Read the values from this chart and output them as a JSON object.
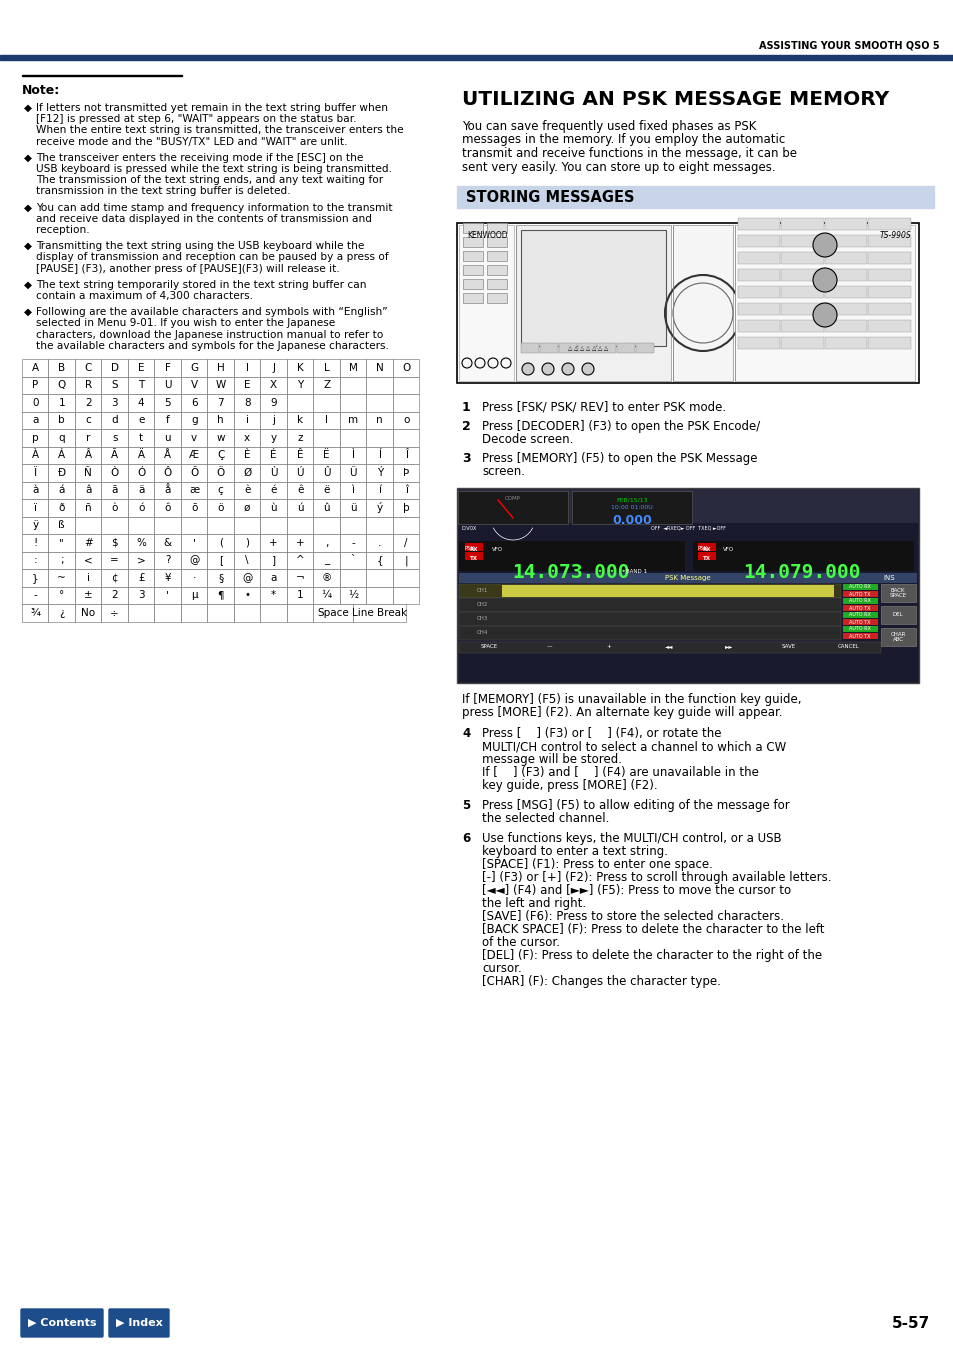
{
  "page_header": "ASSISTING YOUR SMOOTH QSO 5",
  "header_line_color": "#1a3a6b",
  "background_color": "#ffffff",
  "note_title": "Note:",
  "bullet_texts": [
    "If letters not transmitted yet remain in the text string buffer when\n[F12] is pressed at step 6, \"WAIT\" appears on the status bar.\nWhen the entire text string is transmitted, the transceiver enters the\nreceive mode and the \"BUSY/TX\" LED and \"WAIT\" are unlit.",
    "The transceiver enters the receiving mode if the [ESC] on the\nUSB keyboard is pressed while the text string is being transmitted.\nThe transmission of the text string ends, and any text waiting for\ntransmission in the text string buffer is deleted.",
    "You can add time stamp and frequency information to the transmit\nand receive data displayed in the contents of transmission and\nreception.",
    "Transmitting the text string using the USB keyboard while the\ndisplay of transmission and reception can be paused by a press of\n[PAUSE] (F3), another press of [PAUSE](F3) will release it.",
    "The text string temporarily stored in the text string buffer can\ncontain a maximum of 4,300 characters.",
    "Following are the available characters and symbols with “English”\nselected in Menu 9-01. If you wish to enter the Japanese\ncharacters, download the Japanese instruction manual to refer to\nthe available characters and symbols for the Japanese characters."
  ],
  "table_data": [
    [
      "A",
      "B",
      "C",
      "D",
      "E",
      "F",
      "G",
      "H",
      "I",
      "J",
      "K",
      "L",
      "M",
      "N",
      "O"
    ],
    [
      "P",
      "Q",
      "R",
      "S",
      "T",
      "U",
      "V",
      "W",
      "E",
      "X",
      "Y",
      "Z",
      "",
      "",
      ""
    ],
    [
      "0",
      "1",
      "2",
      "3",
      "4",
      "5",
      "6",
      "7",
      "8",
      "9",
      "",
      "",
      "",
      "",
      ""
    ],
    [
      "a",
      "b",
      "c",
      "d",
      "e",
      "f",
      "g",
      "h",
      "i",
      "j",
      "k",
      "l",
      "m",
      "n",
      "o"
    ],
    [
      "p",
      "q",
      "r",
      "s",
      "t",
      "u",
      "v",
      "w",
      "x",
      "y",
      "z",
      "",
      "",
      "",
      ""
    ],
    [
      "À",
      "Á",
      "Â",
      "Ã",
      "Ä",
      "Å",
      "Æ",
      "Ç",
      "È",
      "É",
      "Ê",
      "Ë",
      "Ì",
      "Í",
      "Î"
    ],
    [
      "Ï",
      "Ð",
      "Ñ",
      "Ò",
      "Ó",
      "Ô",
      "Õ",
      "Ö",
      "Ø",
      "Ù",
      "Ú",
      "Û",
      "Ü",
      "Ý",
      "Þ"
    ],
    [
      "à",
      "á",
      "â",
      "ã",
      "ä",
      "å",
      "æ",
      "ç",
      "è",
      "é",
      "ê",
      "ë",
      "ì",
      "í",
      "î"
    ],
    [
      "ï",
      "ð",
      "ñ",
      "ò",
      "ó",
      "ô",
      "õ",
      "ö",
      "ø",
      "ù",
      "ú",
      "û",
      "ü",
      "ý",
      "þ"
    ],
    [
      "ÿ",
      "ß",
      "",
      "",
      "",
      "",
      "",
      "",
      "",
      "",
      "",
      "",
      "",
      "",
      ""
    ],
    [
      "!",
      "\"",
      "#",
      "$",
      "%",
      "&",
      "'",
      "(",
      ")",
      "+",
      "+",
      ",",
      "-",
      ".",
      "/"
    ],
    [
      ":",
      ";",
      "<",
      "=",
      ">",
      "?",
      "@",
      "[",
      "\\",
      "]",
      "^",
      "_",
      "`",
      "{",
      "|"
    ],
    [
      "}",
      "~",
      "i",
      "¢",
      "£",
      "¥",
      "·",
      "§",
      "@",
      "a",
      "¬",
      "®",
      "",
      "",
      ""
    ],
    [
      "-",
      "°",
      "±",
      "2",
      "3",
      "'",
      "µ",
      "¶",
      "•",
      "*",
      "1",
      "¼",
      "½",
      "",
      ""
    ]
  ],
  "table_last_row": [
    "¾",
    "¿",
    "No",
    "÷"
  ],
  "right_title": "UTILIZING AN PSK MESSAGE MEMORY",
  "right_intro": "You can save frequently used fixed phases as PSK\nmessages in the memory. If you employ the automatic\ntransmit and receive functions in the message, it can be\nsent very easily. You can store up to eight messages.",
  "storing_title": "STORING MESSAGES",
  "storing_title_bg": "#c8d4e8",
  "storing_title_color": "#000000",
  "memory_note": "If [MEMORY] (F5) is unavailable in the function key guide,\npress [MORE] (F2). An alternate key guide will appear.",
  "footer_page": "5-57",
  "contents_btn_color": "#1e4d8c",
  "contents_btn_text": "▶ Contents",
  "index_btn_text": "▶ Index"
}
